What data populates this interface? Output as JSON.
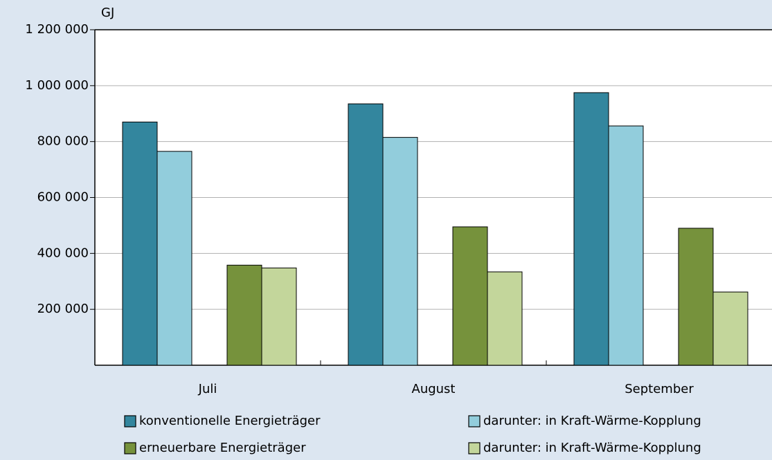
{
  "chart_data": {
    "type": "bar",
    "y_label": "GJ",
    "categories": [
      "Juli",
      "August",
      "September"
    ],
    "series": [
      {
        "name": "konventionelle Energieträger",
        "color": "#33869e",
        "values": [
          870000,
          935000,
          975000
        ]
      },
      {
        "name": "darunter: in Kraft-Wärme-Kopplung",
        "color": "#92cddc",
        "values": [
          765000,
          815000,
          856000
        ]
      },
      {
        "name": "erneuerbare Energieträger",
        "color": "#76923c",
        "values": [
          358000,
          495000,
          490000
        ]
      },
      {
        "name": "darunter: in Kraft-Wärme-Kopplung",
        "color": "#c3d69b",
        "values": [
          348000,
          334000,
          262000
        ]
      }
    ],
    "ylim": [
      0,
      1200000
    ],
    "yticks": [
      {
        "value": 200000,
        "label": "200 000"
      },
      {
        "value": 400000,
        "label": "400 000"
      },
      {
        "value": 600000,
        "label": "600 000"
      },
      {
        "value": 800000,
        "label": "800 000"
      },
      {
        "value": 1000000,
        "label": "1 000 000"
      },
      {
        "value": 1200000,
        "label": "1 200 000"
      }
    ],
    "grid": true
  }
}
